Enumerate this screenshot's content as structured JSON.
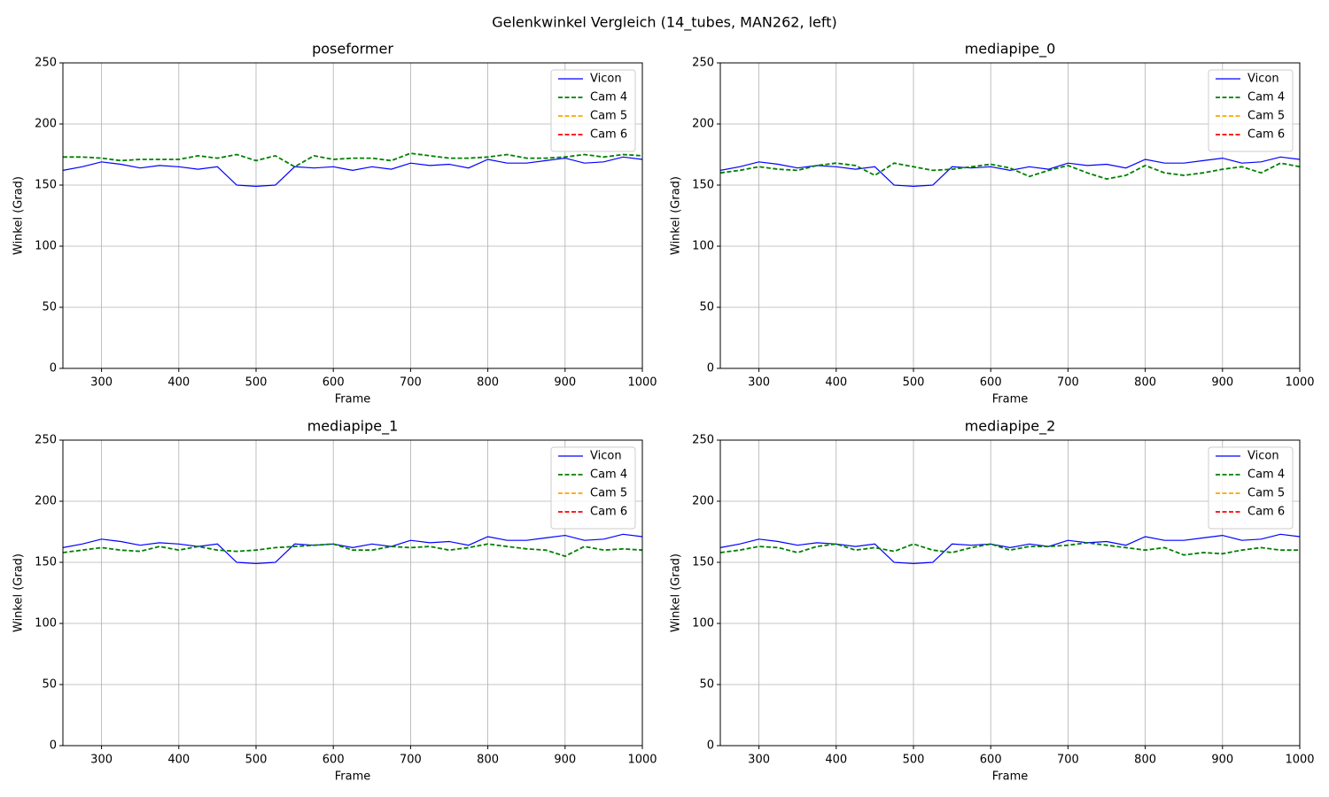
{
  "title": "Gelenkwinkel Vergleich (14_tubes, MAN262, left)",
  "chart_data": [
    {
      "type": "line",
      "title": "poseformer",
      "xlabel": "Frame",
      "ylabel": "Winkel (Grad)",
      "legend": "upper right",
      "grid": true,
      "x": [
        250,
        275,
        300,
        325,
        350,
        375,
        400,
        425,
        450,
        475,
        500,
        525,
        550,
        575,
        600,
        625,
        650,
        675,
        700,
        725,
        750,
        775,
        800,
        825,
        850,
        875,
        900,
        925,
        950,
        975,
        1000
      ],
      "xlim": [
        250,
        1000
      ],
      "xticks": [
        300,
        400,
        500,
        600,
        700,
        800,
        900,
        1000
      ],
      "ylim": [
        0,
        250
      ],
      "yticks": [
        0,
        50,
        100,
        150,
        200,
        250
      ],
      "series": [
        {
          "name": "Vicon",
          "color": "#0000ff",
          "linestyle": "solid",
          "values": [
            162,
            165,
            169,
            167,
            164,
            166,
            165,
            163,
            165,
            150,
            149,
            150,
            165,
            164,
            165,
            162,
            165,
            163,
            168,
            166,
            167,
            164,
            171,
            168,
            168,
            170,
            172,
            168,
            169,
            173,
            171
          ]
        },
        {
          "name": "Cam 4",
          "color": "#008000",
          "linestyle": "dashed",
          "values": [
            173,
            173,
            172,
            170,
            171,
            171,
            171,
            174,
            172,
            175,
            170,
            174,
            165,
            174,
            171,
            172,
            172,
            170,
            176,
            174,
            172,
            172,
            173,
            175,
            172,
            172,
            173,
            175,
            173,
            175,
            174
          ]
        },
        {
          "name": "Cam 5",
          "color": "#ffa500",
          "linestyle": "dashed",
          "values": [
            null,
            null,
            null,
            null,
            null,
            null,
            null,
            null,
            null,
            null,
            null,
            null,
            null,
            null,
            null,
            null,
            null,
            null,
            null,
            null,
            null,
            null,
            null,
            null,
            null,
            null,
            null,
            null,
            null,
            null,
            null
          ]
        },
        {
          "name": "Cam 6",
          "color": "#ff0000",
          "linestyle": "dashed",
          "values": [
            null,
            null,
            null,
            null,
            null,
            null,
            null,
            null,
            null,
            null,
            null,
            null,
            null,
            null,
            null,
            null,
            null,
            null,
            null,
            null,
            null,
            null,
            null,
            null,
            null,
            null,
            null,
            null,
            null,
            null,
            null
          ]
        }
      ]
    },
    {
      "type": "line",
      "title": "mediapipe_0",
      "xlabel": "Frame",
      "ylabel": "Winkel (Grad)",
      "legend": "upper right",
      "grid": true,
      "x": [
        250,
        275,
        300,
        325,
        350,
        375,
        400,
        425,
        450,
        475,
        500,
        525,
        550,
        575,
        600,
        625,
        650,
        675,
        700,
        725,
        750,
        775,
        800,
        825,
        850,
        875,
        900,
        925,
        950,
        975,
        1000
      ],
      "xlim": [
        250,
        1000
      ],
      "xticks": [
        300,
        400,
        500,
        600,
        700,
        800,
        900,
        1000
      ],
      "ylim": [
        0,
        250
      ],
      "yticks": [
        0,
        50,
        100,
        150,
        200,
        250
      ],
      "series": [
        {
          "name": "Vicon",
          "color": "#0000ff",
          "linestyle": "solid",
          "values": [
            162,
            165,
            169,
            167,
            164,
            166,
            165,
            163,
            165,
            150,
            149,
            150,
            165,
            164,
            165,
            162,
            165,
            163,
            168,
            166,
            167,
            164,
            171,
            168,
            168,
            170,
            172,
            168,
            169,
            173,
            171
          ]
        },
        {
          "name": "Cam 4",
          "color": "#008000",
          "linestyle": "dashed",
          "values": [
            160,
            162,
            165,
            163,
            162,
            166,
            168,
            166,
            158,
            168,
            165,
            162,
            163,
            165,
            167,
            164,
            157,
            162,
            166,
            160,
            155,
            158,
            166,
            160,
            158,
            160,
            163,
            165,
            160,
            168,
            165
          ]
        },
        {
          "name": "Cam 5",
          "color": "#ffa500",
          "linestyle": "dashed",
          "values": [
            null,
            null,
            null,
            null,
            null,
            null,
            null,
            null,
            null,
            null,
            null,
            null,
            null,
            null,
            null,
            null,
            null,
            null,
            null,
            null,
            null,
            null,
            null,
            null,
            null,
            null,
            null,
            null,
            null,
            null,
            null
          ]
        },
        {
          "name": "Cam 6",
          "color": "#ff0000",
          "linestyle": "dashed",
          "values": [
            null,
            null,
            null,
            null,
            null,
            null,
            null,
            null,
            null,
            null,
            null,
            null,
            null,
            null,
            null,
            null,
            null,
            null,
            null,
            null,
            null,
            null,
            null,
            null,
            null,
            null,
            null,
            null,
            null,
            null,
            null
          ]
        }
      ]
    },
    {
      "type": "line",
      "title": "mediapipe_1",
      "xlabel": "Frame",
      "ylabel": "Winkel (Grad)",
      "legend": "upper right",
      "grid": true,
      "x": [
        250,
        275,
        300,
        325,
        350,
        375,
        400,
        425,
        450,
        475,
        500,
        525,
        550,
        575,
        600,
        625,
        650,
        675,
        700,
        725,
        750,
        775,
        800,
        825,
        850,
        875,
        900,
        925,
        950,
        975,
        1000
      ],
      "xlim": [
        250,
        1000
      ],
      "xticks": [
        300,
        400,
        500,
        600,
        700,
        800,
        900,
        1000
      ],
      "ylim": [
        0,
        250
      ],
      "yticks": [
        0,
        50,
        100,
        150,
        200,
        250
      ],
      "series": [
        {
          "name": "Vicon",
          "color": "#0000ff",
          "linestyle": "solid",
          "values": [
            162,
            165,
            169,
            167,
            164,
            166,
            165,
            163,
            165,
            150,
            149,
            150,
            165,
            164,
            165,
            162,
            165,
            163,
            168,
            166,
            167,
            164,
            171,
            168,
            168,
            170,
            172,
            168,
            169,
            173,
            171
          ]
        },
        {
          "name": "Cam 4",
          "color": "#008000",
          "linestyle": "dashed",
          "values": [
            158,
            160,
            162,
            160,
            159,
            163,
            160,
            163,
            160,
            159,
            160,
            162,
            163,
            164,
            165,
            160,
            160,
            163,
            162,
            163,
            160,
            162,
            165,
            163,
            161,
            160,
            155,
            163,
            160,
            161,
            160
          ]
        },
        {
          "name": "Cam 5",
          "color": "#ffa500",
          "linestyle": "dashed",
          "values": [
            null,
            null,
            null,
            null,
            null,
            null,
            null,
            null,
            null,
            null,
            null,
            null,
            null,
            null,
            null,
            null,
            null,
            null,
            null,
            null,
            null,
            null,
            null,
            null,
            null,
            null,
            null,
            null,
            null,
            null,
            null
          ]
        },
        {
          "name": "Cam 6",
          "color": "#ff0000",
          "linestyle": "dashed",
          "values": [
            null,
            null,
            null,
            null,
            null,
            null,
            null,
            null,
            null,
            null,
            null,
            null,
            null,
            null,
            null,
            null,
            null,
            null,
            null,
            null,
            null,
            null,
            null,
            null,
            null,
            null,
            null,
            null,
            null,
            null,
            null
          ]
        }
      ]
    },
    {
      "type": "line",
      "title": "mediapipe_2",
      "xlabel": "Frame",
      "ylabel": "Winkel (Grad)",
      "legend": "upper right",
      "grid": true,
      "x": [
        250,
        275,
        300,
        325,
        350,
        375,
        400,
        425,
        450,
        475,
        500,
        525,
        550,
        575,
        600,
        625,
        650,
        675,
        700,
        725,
        750,
        775,
        800,
        825,
        850,
        875,
        900,
        925,
        950,
        975,
        1000
      ],
      "xlim": [
        250,
        1000
      ],
      "xticks": [
        300,
        400,
        500,
        600,
        700,
        800,
        900,
        1000
      ],
      "ylim": [
        0,
        250
      ],
      "yticks": [
        0,
        50,
        100,
        150,
        200,
        250
      ],
      "series": [
        {
          "name": "Vicon",
          "color": "#0000ff",
          "linestyle": "solid",
          "values": [
            162,
            165,
            169,
            167,
            164,
            166,
            165,
            163,
            165,
            150,
            149,
            150,
            165,
            164,
            165,
            162,
            165,
            163,
            168,
            166,
            167,
            164,
            171,
            168,
            168,
            170,
            172,
            168,
            169,
            173,
            171
          ]
        },
        {
          "name": "Cam 4",
          "color": "#008000",
          "linestyle": "dashed",
          "values": [
            158,
            160,
            163,
            162,
            158,
            163,
            165,
            160,
            162,
            159,
            165,
            160,
            158,
            162,
            165,
            160,
            163,
            163,
            164,
            166,
            164,
            162,
            160,
            162,
            156,
            158,
            157,
            160,
            162,
            160,
            160
          ]
        },
        {
          "name": "Cam 5",
          "color": "#ffa500",
          "linestyle": "dashed",
          "values": [
            null,
            null,
            null,
            null,
            null,
            null,
            null,
            null,
            null,
            null,
            null,
            null,
            null,
            null,
            null,
            null,
            null,
            null,
            null,
            null,
            null,
            null,
            null,
            null,
            null,
            null,
            null,
            null,
            null,
            null,
            null
          ]
        },
        {
          "name": "Cam 6",
          "color": "#ff0000",
          "linestyle": "dashed",
          "values": [
            null,
            null,
            null,
            null,
            null,
            null,
            null,
            null,
            null,
            null,
            null,
            null,
            null,
            null,
            null,
            null,
            null,
            null,
            null,
            null,
            null,
            null,
            null,
            null,
            null,
            null,
            null,
            null,
            null,
            null,
            null
          ]
        }
      ]
    }
  ]
}
